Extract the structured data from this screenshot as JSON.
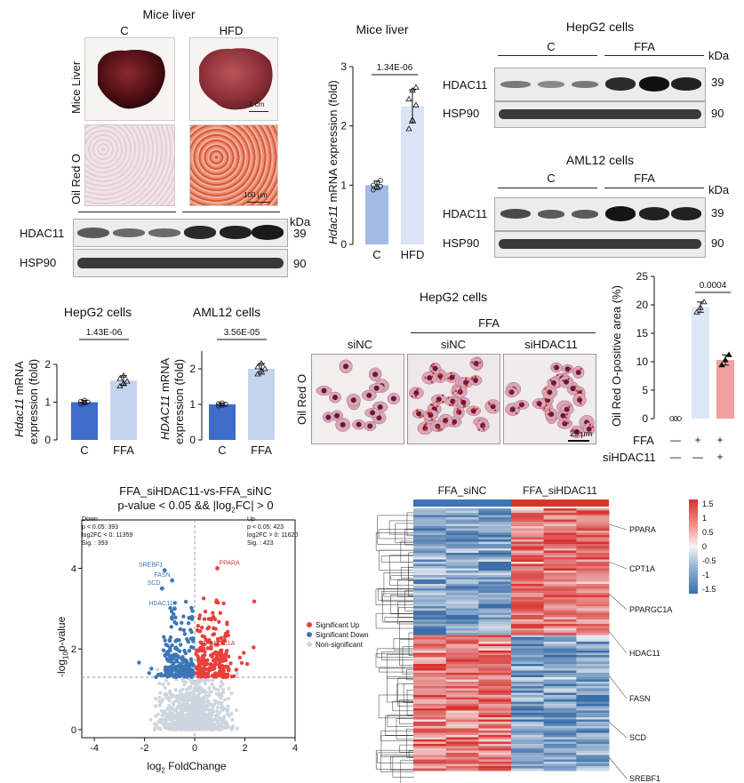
{
  "panelA": {
    "title": "Mice liver",
    "group_c": "C",
    "group_hfd": "HFD",
    "row_mice_liver": "Mice Liver",
    "row_oil_red": "Oil Red O",
    "scale_1cm": "1 cm",
    "scale_100um": "100 μm",
    "blot_hdac11": "HDAC11",
    "blot_hsp90": "HSP90",
    "kda": "kDa",
    "mw_39": "39",
    "mw_90": "90"
  },
  "panelB_mice": {
    "title": "Mice liver",
    "ylabel_gene": "Hdac11",
    "ylabel_rest": " mRNA expression (fold)",
    "pvalue": "1.34E-06",
    "chart_data": {
      "type": "bar",
      "categories": [
        "C",
        "HFD"
      ],
      "values": [
        1.0,
        2.33
      ],
      "errors": [
        0.07,
        0.28
      ],
      "points": [
        [
          0.92,
          0.96,
          0.98,
          1.0,
          1.04,
          1.08
        ],
        [
          1.95,
          2.1,
          2.35,
          2.45,
          2.6,
          2.65
        ]
      ],
      "ylim": [
        0,
        3
      ],
      "yticks": [
        0,
        1,
        2,
        3
      ],
      "colors": [
        "#9fbbe6",
        "#d9e4f6"
      ]
    }
  },
  "panelC_hepg2": {
    "title": "HepG2 cells",
    "group_c": "C",
    "group_ffa": "FFA",
    "blot_hdac11": "HDAC11",
    "blot_hsp90": "HSP90",
    "kda": "kDa",
    "mw_39": "39",
    "mw_90": "90"
  },
  "panelC_aml12": {
    "title": "AML12 cells",
    "group_c": "C",
    "group_ffa": "FFA",
    "blot_hdac11": "HDAC11",
    "blot_hsp90": "HSP90",
    "kda": "kDa",
    "mw_39": "39",
    "mw_90": "90"
  },
  "panelD_hepg2": {
    "title": "HepG2 cells",
    "ylabel_gene": "Hdac11",
    "ylabel_rest": " mRNA",
    "ylabel_line2": "expression (fold)",
    "pvalue": "1.43E-06",
    "chart_data": {
      "type": "bar",
      "categories": [
        "C",
        "FFA"
      ],
      "values": [
        1.0,
        1.57
      ],
      "errors": [
        0.05,
        0.13
      ],
      "points": [
        [
          0.95,
          0.98,
          1.0,
          1.02,
          1.05
        ],
        [
          1.42,
          1.5,
          1.55,
          1.62,
          1.7
        ]
      ],
      "ylim": [
        0,
        2
      ],
      "yticks": [
        0,
        1,
        2
      ],
      "colors": [
        "#3e6ccb",
        "#c5d4ee"
      ]
    }
  },
  "panelD_aml12": {
    "title": "AML12 cells",
    "ylabel_gene": "HDAC11",
    "ylabel_rest": " mRNA",
    "ylabel_line2": "expression (fold)",
    "pvalue": "3.56E-05",
    "chart_data": {
      "type": "bar",
      "categories": [
        "C",
        "FFA"
      ],
      "values": [
        1.0,
        2.0
      ],
      "errors": [
        0.04,
        0.15
      ],
      "points": [
        [
          0.96,
          0.98,
          1.0,
          1.02,
          1.04
        ],
        [
          1.85,
          1.95,
          2.0,
          2.05,
          2.15
        ]
      ],
      "ylim": [
        0,
        2.5
      ],
      "yticks": [
        0,
        1,
        2
      ],
      "colors": [
        "#3e6ccb",
        "#c5d4ee"
      ]
    }
  },
  "panelE": {
    "title": "HepG2 cells",
    "ffa": "FFA",
    "sinc1": "siNC",
    "sinc2": "siNC",
    "sihdac11": "siHDAC11",
    "row_label": "Oil Red O",
    "scale": "25 μm"
  },
  "panelF": {
    "ylabel": "Oil Red O-positive area (%)",
    "pvalue": "0.0004",
    "row_ffa": "FFA",
    "row_si": "siHDAC11",
    "ffa_marks": [
      "—",
      "+",
      "+"
    ],
    "si_marks": [
      "—",
      "—",
      "+"
    ],
    "chart_data": {
      "type": "bar",
      "categories": [
        "C",
        "FFA+siNC",
        "FFA+siHDAC11"
      ],
      "values": [
        0,
        19.6,
        10.3
      ],
      "errors": [
        0,
        0.9,
        0.9
      ],
      "points": [
        [
          0,
          0,
          0
        ],
        [
          18.7,
          19.5,
          20.5
        ],
        [
          9.4,
          10.3,
          11.2
        ]
      ],
      "ylim": [
        0,
        25
      ],
      "yticks": [
        0,
        5,
        10,
        15,
        20,
        25
      ],
      "colors": [
        "#9fbbe6",
        "#dce7f7",
        "#f4a0a0"
      ]
    }
  },
  "panelG": {
    "title_line1": "FFA_siHDAC11-vs-FFA_siNC",
    "title_line2_a": "p-value < 0.05 && |log",
    "title_line2_sub": "2",
    "title_line2_b": "FC| > 0",
    "xlabel_a": "log",
    "xlabel_sub": "2",
    "xlabel_b": " FoldChange",
    "ylabel_a": "-log",
    "ylabel_sub": "10",
    "ylabel_b": "p-value",
    "down_box": [
      "Down",
      "p < 0.05: 393",
      "log2FC < 0: 11359",
      "Sig. : 393"
    ],
    "up_box": [
      "Up",
      "p < 0.05: 423",
      "log2FC > 0: 11620",
      "Sig. : 423"
    ],
    "legend": [
      "Significant Up",
      "Significant Down",
      "Non-significant"
    ],
    "gene_labels": [
      "SREBF1",
      "FASN",
      "SCD",
      "HDAC11",
      "PPARA",
      "PPARGC1A"
    ],
    "colors": {
      "up": "#e8413d",
      "down": "#3d76b4",
      "ns": "#cdd6df"
    },
    "chart_data": {
      "type": "scatter",
      "xlim": [
        -4.5,
        4
      ],
      "ylim": [
        -0.2,
        5.2
      ],
      "xticks": [
        -4,
        -2,
        0,
        2,
        4
      ],
      "yticks": [
        0,
        2,
        4
      ],
      "threshold_y": 1.3,
      "labeled_points": [
        {
          "gene": "SREBF1",
          "x": -1.2,
          "y": 3.95
        },
        {
          "gene": "FASN",
          "x": -0.9,
          "y": 3.7
        },
        {
          "gene": "SCD",
          "x": -1.3,
          "y": 3.5
        },
        {
          "gene": "HDAC11",
          "x": -0.8,
          "y": 3.0
        },
        {
          "gene": "PPARA",
          "x": 0.9,
          "y": 4.0
        },
        {
          "gene": "PPARGC1A",
          "x": 0.2,
          "y": 2.0
        }
      ],
      "down_count": 393,
      "up_count": 423
    }
  },
  "panelH": {
    "group_a": "FFA_siNC",
    "group_b": "FFA_siHDAC11",
    "genes": [
      "PPARA",
      "CPT1A",
      "PPARGC1A",
      "HDAC11",
      "FASN",
      "SCD",
      "SREBF1"
    ],
    "colorbar_ticks": [
      "1.5",
      "1",
      "0.5",
      "0",
      "-0.5",
      "-1",
      "-1.5"
    ],
    "colors": {
      "high": "#d7312e",
      "mid": "#f5f5f5",
      "low": "#3a6ea8",
      "header_a": "#3e73b8",
      "header_b": "#d8352a"
    }
  }
}
